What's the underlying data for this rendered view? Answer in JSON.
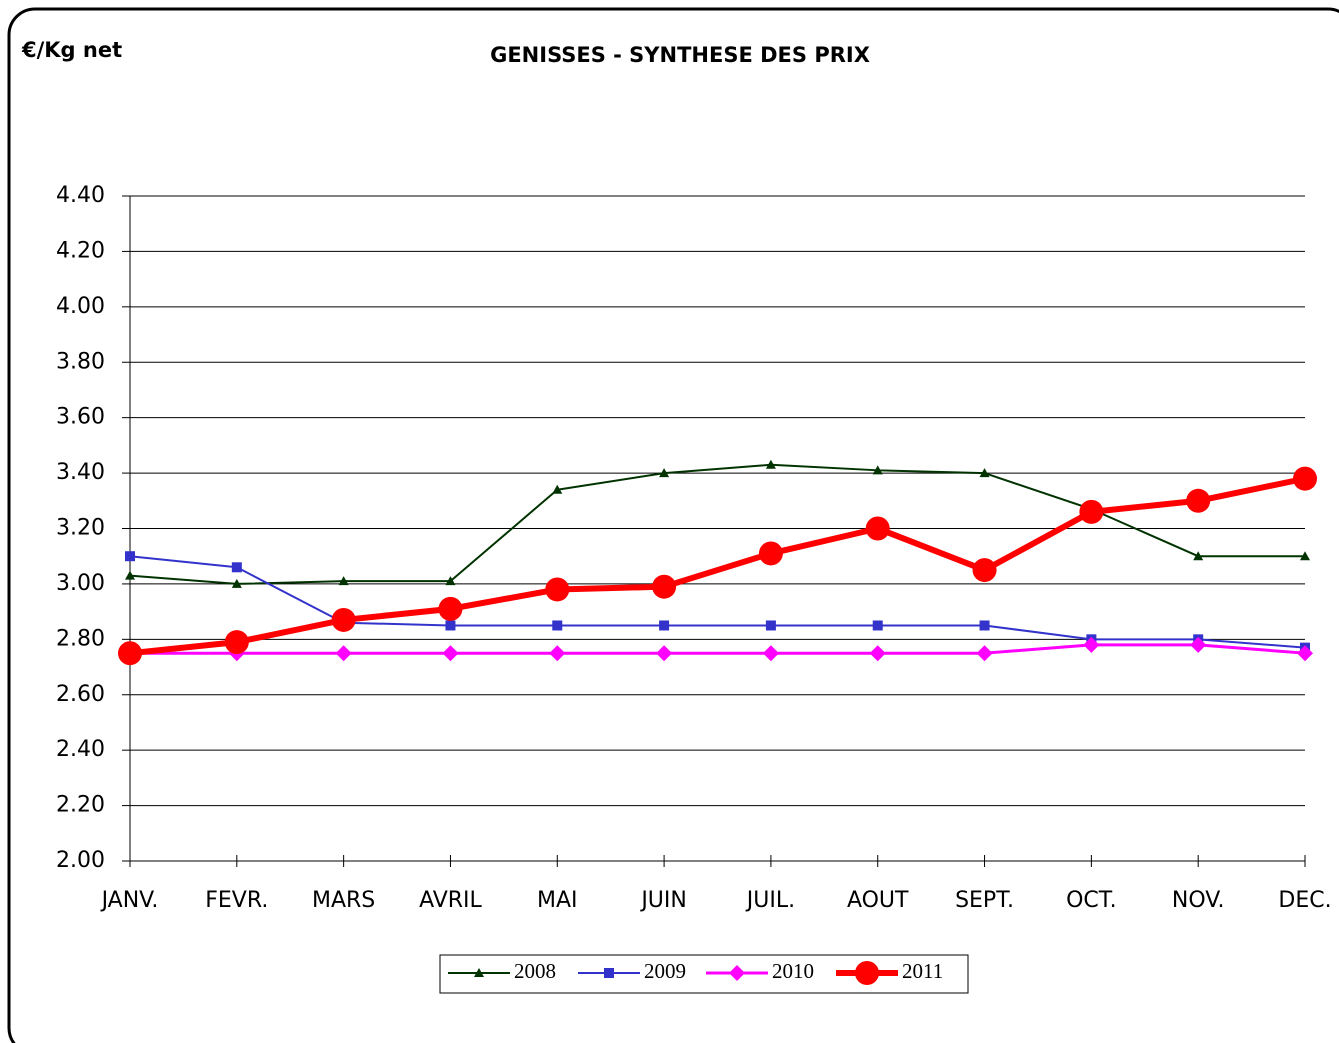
{
  "chart_data": {
    "type": "line",
    "title": "GENISSES - SYNTHESE DES PRIX",
    "y_axis_label": "€/Kg net",
    "categories": [
      "JANV.",
      "FEVR.",
      "MARS",
      "AVRIL",
      "MAI",
      "JUIN",
      "JUIL.",
      "AOUT",
      "SEPT.",
      "OCT.",
      "NOV.",
      "DEC."
    ],
    "series": [
      {
        "name": "2008",
        "color": "#003300",
        "marker": "triangle",
        "values": [
          3.03,
          3.0,
          3.01,
          3.01,
          3.34,
          3.4,
          3.43,
          3.41,
          3.4,
          3.27,
          3.1,
          3.1
        ]
      },
      {
        "name": "2009",
        "color": "#3333cc",
        "marker": "square",
        "values": [
          3.1,
          3.06,
          2.86,
          2.85,
          2.85,
          2.85,
          2.85,
          2.85,
          2.85,
          2.8,
          2.8,
          2.77
        ]
      },
      {
        "name": "2010",
        "color": "#ff00ff",
        "marker": "diamond",
        "values": [
          2.75,
          2.75,
          2.75,
          2.75,
          2.75,
          2.75,
          2.75,
          2.75,
          2.75,
          2.78,
          2.78,
          2.75
        ]
      },
      {
        "name": "2011",
        "color": "#ff0000",
        "marker": "circle",
        "values": [
          2.75,
          2.79,
          2.87,
          2.91,
          2.98,
          2.99,
          3.11,
          3.2,
          3.05,
          3.26,
          3.3,
          3.38
        ]
      }
    ],
    "ylim": [
      2.0,
      4.4
    ],
    "yticks": [
      {
        "value": 2.0,
        "label": "2.00"
      },
      {
        "value": 2.2,
        "label": "2.20"
      },
      {
        "value": 2.4,
        "label": "2.40"
      },
      {
        "value": 2.6,
        "label": "2.60"
      },
      {
        "value": 2.8,
        "label": "2.80"
      },
      {
        "value": 3.0,
        "label": "3.00"
      },
      {
        "value": 3.2,
        "label": "3.20"
      },
      {
        "value": 3.4,
        "label": "3.40"
      },
      {
        "value": 3.6,
        "label": "3.60"
      },
      {
        "value": 3.8,
        "label": "3.80"
      },
      {
        "value": 4.0,
        "label": "4.00"
      },
      {
        "value": 4.2,
        "label": "4.20"
      },
      {
        "value": 4.4,
        "label": "4.40"
      }
    ],
    "grid": true,
    "legend": "bottom"
  }
}
